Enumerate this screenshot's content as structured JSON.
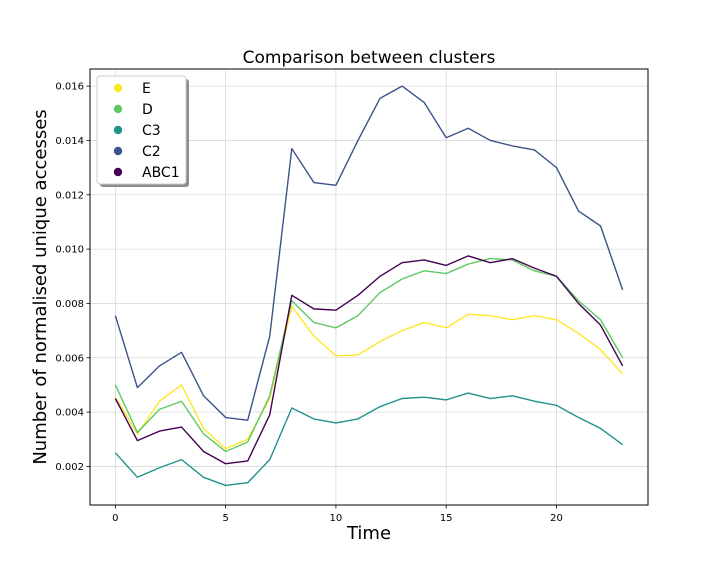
{
  "chart_data": {
    "type": "line",
    "title": "Comparison between clusters",
    "xlabel": "Time",
    "ylabel": "Number of normalised unique accesses",
    "xlim": [
      -1.15,
      24.15
    ],
    "ylim": [
      0.00058,
      0.01663
    ],
    "xticks": [
      0,
      5,
      10,
      15,
      20
    ],
    "xtick_labels": [
      "0",
      "5",
      "10",
      "15",
      "20"
    ],
    "yticks": [
      0.002,
      0.004,
      0.006,
      0.008,
      0.01,
      0.012,
      0.014,
      0.016
    ],
    "ytick_labels": [
      "0.002",
      "0.004",
      "0.006",
      "0.008",
      "0.010",
      "0.012",
      "0.014",
      "0.016"
    ],
    "grid": true,
    "legend_position": "top-left",
    "x": [
      0,
      1,
      2,
      3,
      4,
      5,
      6,
      7,
      8,
      9,
      10,
      11,
      12,
      13,
      14,
      15,
      16,
      17,
      18,
      19,
      20,
      21,
      22,
      23
    ],
    "series": [
      {
        "name": "E",
        "color": "#fde725",
        "values": [
          0.00455,
          0.0032,
          0.0044,
          0.005,
          0.0034,
          0.00265,
          0.003,
          0.0045,
          0.0079,
          0.0068,
          0.00607,
          0.0061,
          0.0066,
          0.007,
          0.0073,
          0.0071,
          0.0076,
          0.00755,
          0.0074,
          0.00755,
          0.0074,
          0.0069,
          0.0063,
          0.0054
        ]
      },
      {
        "name": "D",
        "color": "#5ec962",
        "values": [
          0.005,
          0.00325,
          0.0041,
          0.0044,
          0.0032,
          0.00255,
          0.0029,
          0.0046,
          0.0081,
          0.0073,
          0.0071,
          0.00755,
          0.0084,
          0.0089,
          0.0092,
          0.0091,
          0.00945,
          0.00965,
          0.0096,
          0.0092,
          0.009,
          0.0081,
          0.0074,
          0.006
        ]
      },
      {
        "name": "C3",
        "color": "#21918c",
        "values": [
          0.0025,
          0.0016,
          0.00195,
          0.00225,
          0.0016,
          0.0013,
          0.0014,
          0.00225,
          0.00415,
          0.00375,
          0.0036,
          0.00375,
          0.0042,
          0.0045,
          0.00455,
          0.00445,
          0.0047,
          0.0045,
          0.0046,
          0.0044,
          0.00425,
          0.0038,
          0.0034,
          0.0028
        ]
      },
      {
        "name": "C2",
        "color": "#3b528b",
        "values": [
          0.00755,
          0.0049,
          0.0057,
          0.0062,
          0.0046,
          0.0038,
          0.0037,
          0.0068,
          0.0137,
          0.01245,
          0.01235,
          0.014,
          0.01555,
          0.016,
          0.0154,
          0.0141,
          0.01445,
          0.014,
          0.0138,
          0.01365,
          0.013,
          0.0114,
          0.01085,
          0.0085
        ]
      },
      {
        "name": "ABC1",
        "color": "#440154",
        "values": [
          0.0045,
          0.00295,
          0.0033,
          0.00345,
          0.00255,
          0.0021,
          0.0022,
          0.0039,
          0.0083,
          0.0078,
          0.00775,
          0.0083,
          0.009,
          0.0095,
          0.0096,
          0.0094,
          0.00975,
          0.0095,
          0.00965,
          0.0093,
          0.009,
          0.008,
          0.0072,
          0.0057
        ]
      }
    ]
  }
}
